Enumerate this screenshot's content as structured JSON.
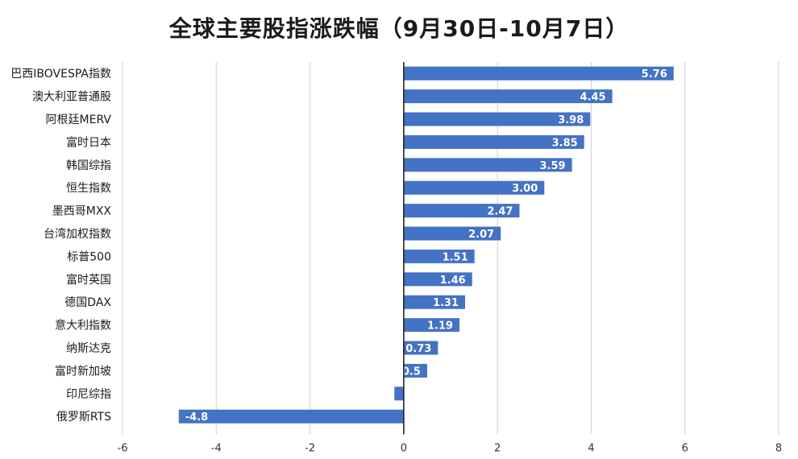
{
  "chart_data": {
    "type": "bar",
    "orientation": "horizontal",
    "title": "全球主要股指涨跌幅（9月30日-10月7日）",
    "categories": [
      "巴西IBOVESPA指数",
      "澳大利亚普通股",
      "阿根廷MERV",
      "富时日本",
      "韩国综指",
      "恒生指数",
      "墨西哥MXX",
      "台湾加权指数",
      "标普500",
      "富时英国",
      "德国DAX",
      "意大利指数",
      "纳斯达克",
      "富时新加坡",
      "印尼综指",
      "俄罗斯RTS"
    ],
    "values": [
      5.76,
      4.45,
      3.98,
      3.85,
      3.59,
      3.0,
      2.47,
      2.07,
      1.51,
      1.46,
      1.31,
      1.19,
      0.73,
      0.5,
      -0.2,
      -4.8
    ],
    "data_labels": [
      "5.76",
      "4.45",
      "3.98",
      "3.85",
      "3.59",
      "3.00",
      "2.47",
      "2.07",
      "1.51",
      "1.46",
      "1.31",
      "1.19",
      "0.73",
      "0.5",
      "",
      "-4.8"
    ],
    "xlim": [
      -6,
      8
    ],
    "xticks": [
      "-6",
      "-4",
      "-2",
      "0",
      "2",
      "4",
      "6",
      "8"
    ],
    "grid": true,
    "bar_color": "#4472C4"
  }
}
